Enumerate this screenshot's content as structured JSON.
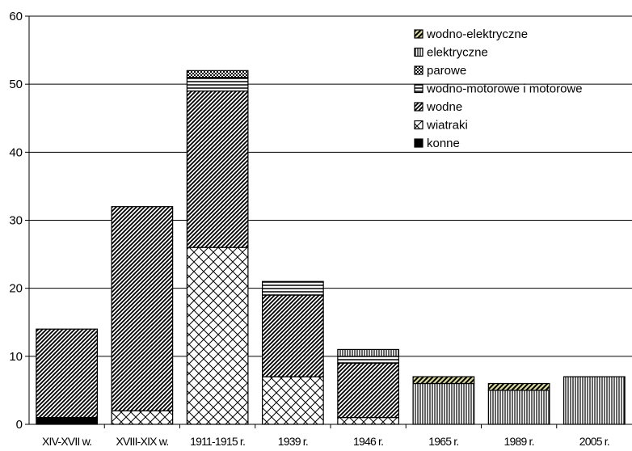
{
  "chart_data": {
    "type": "bar",
    "stacked": true,
    "title": "",
    "xlabel": "",
    "ylabel": "",
    "ylim": [
      0,
      60
    ],
    "yticks": [
      0,
      10,
      20,
      30,
      40,
      50,
      60
    ],
    "grid": true,
    "legend_position": "top-right",
    "categories": [
      "XIV-XVII w.",
      "XVIII-XIX w.",
      "1911-1915 r.",
      "1939 r.",
      "1946 r.",
      "1965 r.",
      "1989 r.",
      "2005 r."
    ],
    "series": [
      {
        "name": "konne",
        "pattern": "solid-black",
        "values": [
          1,
          0,
          0,
          0,
          0,
          0,
          0,
          0
        ]
      },
      {
        "name": "wiatraki",
        "pattern": "crosshatch",
        "values": [
          0,
          2,
          26,
          7,
          1,
          0,
          0,
          0
        ]
      },
      {
        "name": "wodne",
        "pattern": "diagonal",
        "values": [
          13,
          30,
          23,
          12,
          8,
          0,
          0,
          0
        ]
      },
      {
        "name": "wodno-motorowe i motorowe",
        "pattern": "horizontal",
        "values": [
          0,
          0,
          2,
          2,
          1,
          0,
          0,
          0
        ]
      },
      {
        "name": "parowe",
        "pattern": "dotted",
        "values": [
          0,
          0,
          1,
          0,
          0,
          0,
          0,
          0
        ]
      },
      {
        "name": "elektryczne",
        "pattern": "vertical",
        "values": [
          0,
          0,
          0,
          0,
          1,
          6,
          5,
          7
        ]
      },
      {
        "name": "wodno-elektryczne",
        "pattern": "diagonal-olive",
        "values": [
          0,
          0,
          0,
          0,
          0,
          1,
          1,
          0
        ]
      }
    ]
  }
}
